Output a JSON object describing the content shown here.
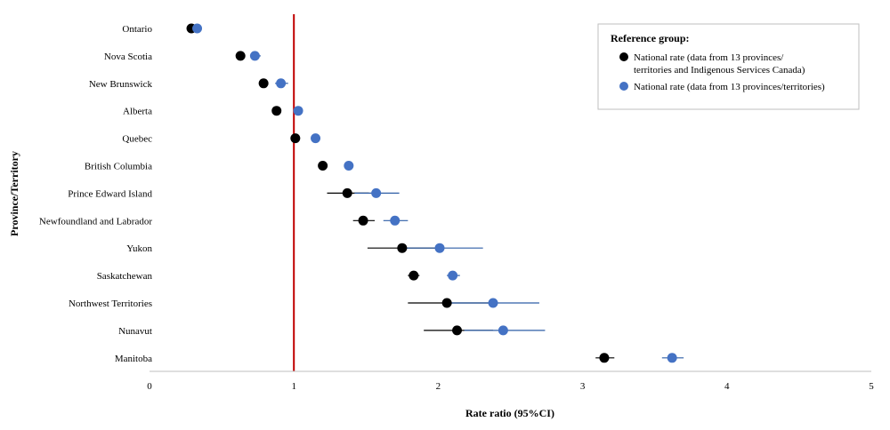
{
  "chart_data": {
    "type": "scatter",
    "xlabel": "Rate ratio (95%CI)",
    "ylabel": "Province/Territory",
    "xlim": [
      0,
      5
    ],
    "xticks": [
      "0",
      "1",
      "2",
      "3",
      "4",
      "5"
    ],
    "reference_line_x": 1,
    "reference_line_color": "#c00000",
    "grid": false,
    "legend_position": "top-right",
    "legend_title": "Reference group:",
    "categories": [
      "Ontario",
      "Nova Scotia",
      "New Brunswick",
      "Alberta",
      "Quebec",
      "British Columbia",
      "Prince Edward Island",
      "Newfoundland and Labrador",
      "Yukon",
      "Saskatchewan",
      "Northwest Territories",
      "Nunavut",
      "Manitoba"
    ],
    "series": [
      {
        "name_lines": [
          "National rate (data from 13 provinces/",
          "territories and Indigenous Services Canada)"
        ],
        "color": "#000000",
        "line_color": "#000000",
        "values": [
          0.29,
          0.63,
          0.79,
          0.88,
          1.01,
          1.2,
          1.37,
          1.48,
          1.75,
          1.83,
          2.06,
          2.13,
          3.15
        ],
        "lower": [
          0.27,
          0.61,
          0.76,
          0.86,
          0.99,
          1.18,
          1.23,
          1.41,
          1.51,
          1.79,
          1.79,
          1.9,
          3.09
        ],
        "upper": [
          0.31,
          0.65,
          0.82,
          0.9,
          1.03,
          1.22,
          1.52,
          1.56,
          1.99,
          1.87,
          2.35,
          2.38,
          3.22
        ]
      },
      {
        "name_lines": [
          "National rate (data from 13 provinces/territories)"
        ],
        "color": "#4472c4",
        "line_color": "#2e5ea6",
        "values": [
          0.33,
          0.73,
          0.91,
          1.03,
          1.15,
          1.38,
          1.57,
          1.7,
          2.01,
          2.1,
          2.38,
          2.45,
          3.62
        ],
        "lower": [
          0.31,
          0.7,
          0.87,
          1.01,
          1.13,
          1.36,
          1.42,
          1.62,
          1.75,
          2.06,
          2.07,
          2.18,
          3.55
        ],
        "upper": [
          0.35,
          0.77,
          0.96,
          1.05,
          1.17,
          1.4,
          1.73,
          1.79,
          2.31,
          2.15,
          2.7,
          2.74,
          3.7
        ]
      }
    ]
  }
}
